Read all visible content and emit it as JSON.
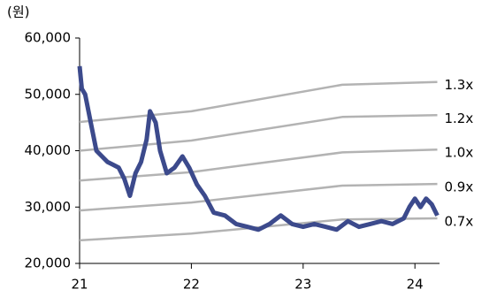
{
  "chart_data": {
    "type": "line",
    "y_label": "(원)",
    "xlim": [
      21,
      24.22
    ],
    "xticks": [
      21,
      22,
      23,
      24
    ],
    "ylim": [
      20000,
      60000
    ],
    "yticks": [
      {
        "value": 20000,
        "label": "20,000"
      },
      {
        "value": 30000,
        "label": "30,000"
      },
      {
        "value": 40000,
        "label": "40,000"
      },
      {
        "value": 50000,
        "label": "50,000"
      },
      {
        "value": 60000,
        "label": "60,000"
      }
    ],
    "series": [
      {
        "name": "1.3x",
        "color": "#b3b3b3",
        "x": [
          21,
          22,
          23.35,
          24.2
        ],
        "values": [
          45100,
          47000,
          51700,
          52200
        ]
      },
      {
        "name": "1.2x",
        "color": "#b3b3b3",
        "x": [
          21,
          22,
          23.35,
          24.2
        ],
        "values": [
          40000,
          41800,
          46000,
          46300
        ]
      },
      {
        "name": "1.0x",
        "color": "#b3b3b3",
        "x": [
          21,
          22,
          23.35,
          24.2
        ],
        "values": [
          34700,
          36200,
          39700,
          40200
        ]
      },
      {
        "name": "0.9x",
        "color": "#b3b3b3",
        "x": [
          21,
          22,
          23.35,
          24.2
        ],
        "values": [
          29400,
          30800,
          33800,
          34100
        ]
      },
      {
        "name": "0.7x",
        "color": "#b3b3b3",
        "x": [
          21,
          22,
          23.35,
          24.2
        ],
        "values": [
          24100,
          25300,
          27800,
          28000
        ]
      },
      {
        "color": "#3c4a8c",
        "x": [
          21.0,
          21.02,
          21.05,
          21.1,
          21.15,
          21.2,
          21.25,
          21.3,
          21.35,
          21.4,
          21.45,
          21.5,
          21.55,
          21.6,
          21.63,
          21.68,
          21.72,
          21.78,
          21.85,
          21.92,
          21.98,
          22.05,
          22.12,
          22.2,
          22.3,
          22.4,
          22.5,
          22.6,
          22.7,
          22.8,
          22.9,
          23.0,
          23.1,
          23.2,
          23.3,
          23.4,
          23.5,
          23.6,
          23.7,
          23.8,
          23.9,
          23.95,
          24.0,
          24.05,
          24.1,
          24.15,
          24.2
        ],
        "values": [
          55000,
          51000,
          50000,
          45000,
          40000,
          39000,
          38000,
          37500,
          37000,
          35000,
          32000,
          36000,
          38000,
          42000,
          47000,
          45000,
          40000,
          36000,
          37000,
          39000,
          37000,
          34000,
          32000,
          29000,
          28500,
          27000,
          26500,
          26000,
          27000,
          28500,
          27000,
          26500,
          27000,
          26500,
          26000,
          27500,
          26500,
          27000,
          27500,
          27000,
          28000,
          30000,
          31500,
          30000,
          31500,
          30500,
          28500
        ]
      }
    ]
  }
}
